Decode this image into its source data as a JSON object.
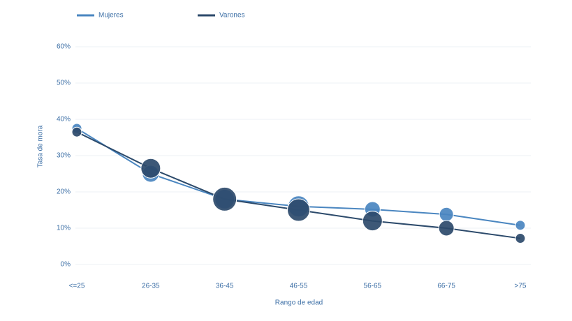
{
  "chart_data": {
    "type": "line",
    "x_label": "Rango de edad",
    "y_label": "Tasa de mora",
    "categories": [
      "<=25",
      "26-35",
      "36-45",
      "46-55",
      "56-65",
      "66-75",
      ">75"
    ],
    "series": [
      {
        "name": "Mujeres",
        "color": "#4a86c0",
        "values": [
          37.5,
          25,
          18,
          16,
          15.2,
          13.8,
          10.8
        ],
        "sizes": [
          7,
          12,
          14,
          15,
          11,
          10,
          7
        ]
      },
      {
        "name": "Varones",
        "color": "#2c4a6b",
        "values": [
          36.5,
          26.5,
          18,
          15,
          12,
          10,
          7.2
        ],
        "sizes": [
          7,
          14,
          17,
          16,
          14,
          11,
          7
        ]
      }
    ],
    "ylim": [
      0,
      60
    ],
    "yticks": [
      {
        "value": 0,
        "label": "0%"
      },
      {
        "value": 10,
        "label": "10%"
      },
      {
        "value": 20,
        "label": "20%"
      },
      {
        "value": 30,
        "label": "30%"
      },
      {
        "value": 40,
        "label": "40%"
      },
      {
        "value": 50,
        "label": "50%"
      },
      {
        "value": 60,
        "label": "60%"
      }
    ],
    "grid": true
  }
}
